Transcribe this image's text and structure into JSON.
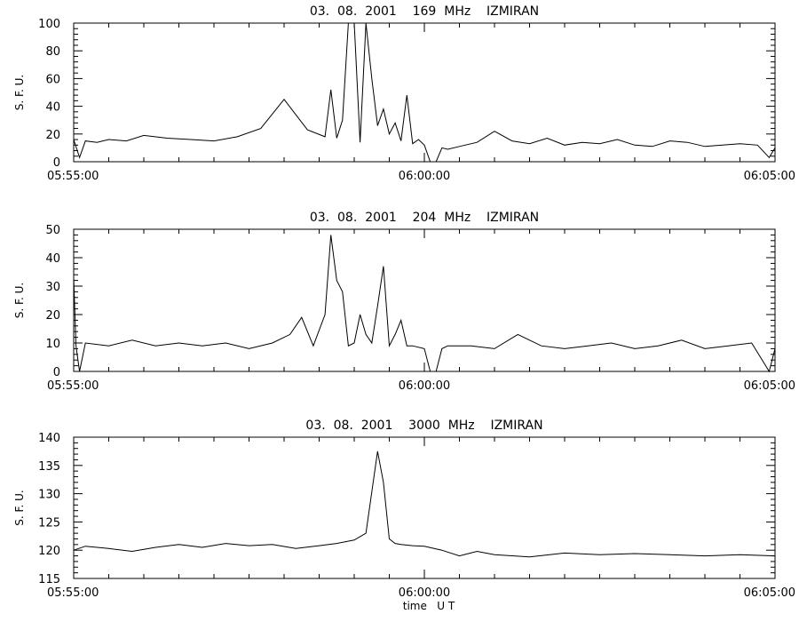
{
  "chart_data": [
    {
      "type": "line",
      "title": "03.  08.  2001    169  MHz    IZMIRAN",
      "ylabel": "S. F. U.",
      "xlabel": "",
      "xlim": [
        "05:55:00",
        "06:05:00"
      ],
      "x_tick_labels": [
        "05:55:00",
        "06:00:00",
        "06:05:00"
      ],
      "ylim": [
        0,
        100
      ],
      "y_ticks": [
        0,
        20,
        40,
        60,
        80,
        100
      ],
      "grid": false,
      "series": [
        {
          "x": [
            "05:55:00",
            "05:55:05",
            "05:55:10",
            "05:55:20",
            "05:55:30",
            "05:55:45",
            "05:56:00",
            "05:56:20",
            "05:56:40",
            "05:57:00",
            "05:57:20",
            "05:57:40",
            "05:58:00",
            "05:58:20",
            "05:58:35",
            "05:58:40",
            "05:58:45",
            "05:58:50",
            "05:58:55",
            "05:59:00",
            "05:59:05",
            "05:59:10",
            "05:59:15",
            "05:59:20",
            "05:59:25",
            "05:59:30",
            "05:59:35",
            "05:59:40",
            "05:59:45",
            "05:59:50",
            "05:59:55",
            "06:00:00",
            "06:00:05",
            "06:00:10",
            "06:00:15",
            "06:00:20",
            "06:00:30",
            "06:00:45",
            "06:01:00",
            "06:01:15",
            "06:01:30",
            "06:01:45",
            "06:02:00",
            "06:02:15",
            "06:02:30",
            "06:02:45",
            "06:03:00",
            "06:03:15",
            "06:03:30",
            "06:03:45",
            "06:04:00",
            "06:04:15",
            "06:04:30",
            "06:04:45",
            "06:04:55",
            "06:05:00"
          ],
          "y": [
            16,
            3,
            15,
            14,
            16,
            15,
            19,
            17,
            16,
            15,
            18,
            24,
            45,
            23,
            18,
            52,
            17,
            30,
            100,
            100,
            14,
            100,
            60,
            26,
            38,
            20,
            28,
            15,
            48,
            13,
            16,
            12,
            0,
            0,
            10,
            9,
            11,
            14,
            22,
            15,
            13,
            17,
            12,
            14,
            13,
            16,
            12,
            11,
            15,
            14,
            11,
            12,
            13,
            12,
            3,
            10
          ]
        }
      ]
    },
    {
      "type": "line",
      "title": "03.  08.  2001    204  MHz    IZMIRAN",
      "ylabel": "S. F. U.",
      "xlabel": "",
      "xlim": [
        "05:55:00",
        "06:05:00"
      ],
      "x_tick_labels": [
        "05:55:00",
        "06:00:00",
        "06:05:00"
      ],
      "ylim": [
        0,
        50
      ],
      "y_ticks": [
        0,
        10,
        20,
        30,
        40,
        50
      ],
      "grid": false,
      "series": [
        {
          "x": [
            "05:55:00",
            "05:55:02",
            "05:55:05",
            "05:55:10",
            "05:55:30",
            "05:55:50",
            "05:56:10",
            "05:56:30",
            "05:56:50",
            "05:57:10",
            "05:57:30",
            "05:57:50",
            "05:58:05",
            "05:58:15",
            "05:58:25",
            "05:58:35",
            "05:58:40",
            "05:58:45",
            "05:58:50",
            "05:58:55",
            "05:59:00",
            "05:59:05",
            "05:59:10",
            "05:59:15",
            "05:59:20",
            "05:59:25",
            "05:59:30",
            "05:59:35",
            "05:59:40",
            "05:59:45",
            "05:59:50",
            "06:00:00",
            "06:00:05",
            "06:00:10",
            "06:00:15",
            "06:00:20",
            "06:00:40",
            "06:01:00",
            "06:01:20",
            "06:01:40",
            "06:02:00",
            "06:02:20",
            "06:02:40",
            "06:03:00",
            "06:03:20",
            "06:03:40",
            "06:04:00",
            "06:04:20",
            "06:04:40",
            "06:04:55",
            "06:05:00"
          ],
          "y": [
            33,
            9,
            0,
            10,
            9,
            11,
            9,
            10,
            9,
            10,
            8,
            10,
            13,
            19,
            9,
            20,
            48,
            32,
            28,
            9,
            10,
            20,
            13,
            10,
            23,
            37,
            9,
            13,
            18,
            9,
            9,
            8,
            0,
            0,
            8,
            9,
            9,
            8,
            13,
            9,
            8,
            9,
            10,
            8,
            9,
            11,
            8,
            9,
            10,
            0,
            8
          ]
        }
      ]
    },
    {
      "type": "line",
      "title": "03.  08.  2001    3000  MHz    IZMIRAN",
      "ylabel": "S. F. U.",
      "xlabel": "time   U T",
      "xlim": [
        "05:55:00",
        "06:05:00"
      ],
      "x_tick_labels": [
        "05:55:00",
        "06:00:00",
        "06:05:00"
      ],
      "ylim": [
        115,
        140
      ],
      "y_ticks": [
        115,
        120,
        125,
        130,
        135,
        140
      ],
      "grid": false,
      "series": [
        {
          "x": [
            "05:55:00",
            "05:55:10",
            "05:55:30",
            "05:55:50",
            "05:56:10",
            "05:56:30",
            "05:56:50",
            "05:57:10",
            "05:57:30",
            "05:57:50",
            "05:58:10",
            "05:58:30",
            "05:58:45",
            "05:59:00",
            "05:59:10",
            "05:59:20",
            "05:59:25",
            "05:59:30",
            "05:59:35",
            "05:59:40",
            "05:59:50",
            "06:00:00",
            "06:00:15",
            "06:00:30",
            "06:00:45",
            "06:01:00",
            "06:01:30",
            "06:02:00",
            "06:02:30",
            "06:03:00",
            "06:03:30",
            "06:04:00",
            "06:04:30",
            "06:05:00"
          ],
          "y": [
            120,
            120.7,
            120.3,
            119.8,
            120.5,
            121,
            120.5,
            121.2,
            120.8,
            121,
            120.3,
            120.8,
            121.2,
            121.8,
            123,
            137.5,
            132,
            122,
            121.2,
            121,
            120.8,
            120.7,
            120,
            119,
            119.8,
            119.2,
            118.8,
            119.5,
            119.2,
            119.4,
            119.2,
            119,
            119.2,
            119
          ]
        }
      ]
    }
  ]
}
